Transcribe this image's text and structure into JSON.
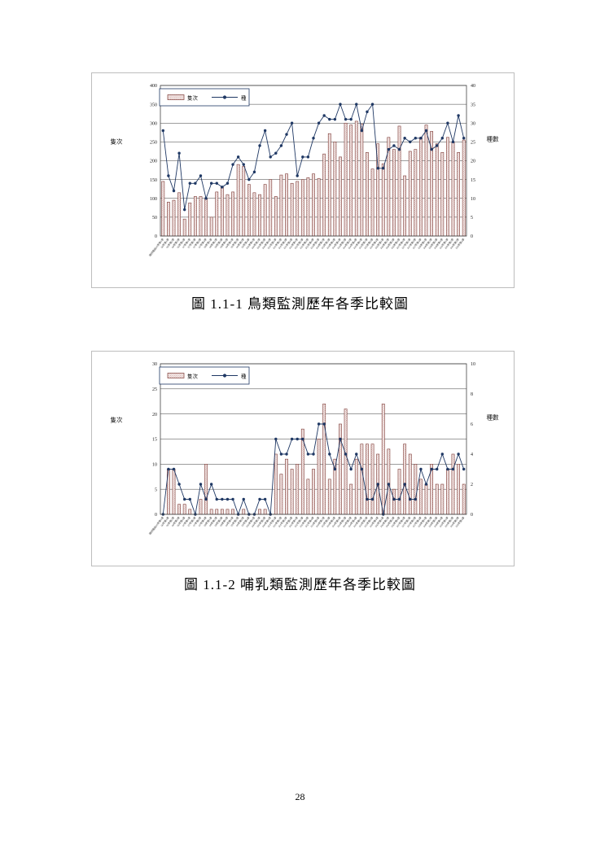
{
  "page": {
    "number": "28"
  },
  "figure1": {
    "caption": "圖 1.1-1 鳥類監測歷年各季比較圖"
  },
  "figure2": {
    "caption": "圖 1.1-2 哺乳類監測歷年各季比較圖"
  },
  "chart_data": [
    {
      "id": "birds",
      "type": "bar",
      "title": "圖 1.1-1 鳥類監測歷年各季比較圖",
      "legend": {
        "bar": "隻次",
        "line": "種"
      },
      "legend_position": "top-left",
      "grid": true,
      "axis_left": {
        "label": "隻次",
        "min": 0,
        "max": 400,
        "step": 50
      },
      "axis_right": {
        "label": "種數",
        "min": 0,
        "max": 40,
        "step": 5
      },
      "colors": {
        "bar_stroke": "#7e3b36",
        "bar_dot": "#c49a96",
        "line": "#1f3864"
      },
      "categories": [
        "環評階段95年第1季",
        "96年第1季",
        "96年第2季",
        "96年第3季",
        "96年第4季",
        "97年第1季",
        "97年第2季",
        "97年第3季",
        "97年第4季",
        "98年第1季",
        "98年第2季",
        "98年第3季",
        "98年第4季",
        "99年第1季",
        "99年第2季",
        "99年第3季",
        "99年第4季",
        "100年第1季",
        "100年第2季",
        "100年第3季",
        "100年第4季",
        "101年第1季",
        "101年第2季",
        "101年第3季",
        "101年第4季",
        "102年第1季",
        "102年第2季",
        "102年第3季",
        "102年第4季",
        "103年第1季",
        "103年第2季",
        "103年第3季",
        "103年第4季",
        "104年第1季",
        "104年第2季",
        "104年第3季",
        "104年第4季",
        "105年第1季",
        "105年第2季",
        "105年第3季",
        "105年第4季",
        "106年第1季",
        "106年第2季",
        "106年第3季",
        "106年第4季",
        "107年第1季",
        "107年第2季",
        "107年第3季",
        "107年第4季",
        "108年第1季",
        "108年第2季",
        "108年第3季",
        "108年第4季",
        "109年第1季",
        "109年第2季",
        "109年第3季",
        "109年第4季"
      ],
      "series": [
        {
          "name": "隻次",
          "type": "bar",
          "axis": "left",
          "values": [
            145,
            90,
            95,
            115,
            45,
            88,
            105,
            105,
            100,
            50,
            117,
            130,
            110,
            117,
            190,
            185,
            137,
            115,
            110,
            137,
            150,
            105,
            162,
            165,
            140,
            145,
            150,
            155,
            165,
            153,
            218,
            272,
            250,
            210,
            300,
            295,
            305,
            297,
            222,
            178,
            245,
            192,
            262,
            230,
            292,
            160,
            225,
            230,
            262,
            295,
            278,
            245,
            222,
            262,
            250,
            222,
            255
          ]
        },
        {
          "name": "種",
          "type": "line",
          "axis": "right",
          "values": [
            28,
            16,
            12,
            22,
            7,
            14,
            14,
            16,
            10,
            14,
            14,
            13,
            14,
            19,
            21,
            19,
            15,
            17,
            24,
            28,
            21,
            22,
            24,
            27,
            30,
            16,
            21,
            21,
            26,
            30,
            32,
            31,
            31,
            35,
            31,
            31,
            35,
            28,
            33,
            35,
            18,
            18,
            23,
            24,
            23,
            26,
            25,
            26,
            26,
            28,
            23,
            24,
            26,
            30,
            25,
            32,
            26
          ]
        }
      ]
    },
    {
      "id": "mammals",
      "type": "bar",
      "title": "圖 1.1-2 哺乳類監測歷年各季比較圖",
      "legend": {
        "bar": "隻次",
        "line": "種"
      },
      "legend_position": "top-left",
      "grid": true,
      "axis_left": {
        "label": "隻次",
        "min": 0,
        "max": 30,
        "step": 5
      },
      "axis_right": {
        "label": "種數",
        "min": 0,
        "max": 10,
        "step": 2
      },
      "colors": {
        "bar_stroke": "#7e3b36",
        "bar_dot": "#c49a96",
        "line": "#1f3864"
      },
      "categories": [
        "環評階段95年第1季",
        "96年第1季",
        "96年第2季",
        "96年第3季",
        "96年第4季",
        "97年第1季",
        "97年第2季",
        "97年第3季",
        "97年第4季",
        "98年第1季",
        "98年第2季",
        "98年第3季",
        "98年第4季",
        "99年第1季",
        "99年第2季",
        "99年第3季",
        "99年第4季",
        "100年第1季",
        "100年第2季",
        "100年第3季",
        "100年第4季",
        "101年第1季",
        "101年第2季",
        "101年第3季",
        "101年第4季",
        "102年第1季",
        "102年第2季",
        "102年第3季",
        "102年第4季",
        "103年第1季",
        "103年第2季",
        "103年第3季",
        "103年第4季",
        "104年第1季",
        "104年第2季",
        "104年第3季",
        "104年第4季",
        "105年第1季",
        "105年第2季",
        "105年第3季",
        "105年第4季",
        "106年第1季",
        "106年第2季",
        "106年第3季",
        "106年第4季",
        "107年第1季",
        "107年第2季",
        "107年第3季",
        "107年第4季",
        "108年第1季",
        "108年第2季",
        "108年第3季",
        "108年第4季",
        "109年第1季",
        "109年第2季",
        "109年第3季",
        "109年第4季"
      ],
      "series": [
        {
          "name": "隻次",
          "type": "bar",
          "axis": "left",
          "values": [
            0,
            9,
            9,
            2,
            2,
            1,
            0,
            3,
            10,
            1,
            1,
            1,
            1,
            1,
            0,
            1,
            0,
            0,
            1,
            1,
            0,
            12,
            8,
            11,
            9,
            10,
            17,
            7,
            9,
            15,
            22,
            7,
            11,
            18,
            21,
            6,
            11,
            14,
            14,
            14,
            12,
            22,
            13,
            5,
            9,
            14,
            12,
            10,
            7,
            6,
            10,
            6,
            6,
            9,
            12,
            10,
            6
          ]
        },
        {
          "name": "種",
          "type": "line",
          "axis": "right",
          "values": [
            0,
            3,
            3,
            2,
            1,
            1,
            0,
            2,
            1,
            2,
            1,
            1,
            1,
            1,
            0,
            1,
            0,
            0,
            1,
            1,
            0,
            5,
            4,
            4,
            5,
            5,
            5,
            4,
            4,
            6,
            6,
            4,
            3,
            5,
            4,
            3,
            4,
            3,
            1,
            1,
            2,
            0,
            2,
            1,
            1,
            2,
            1,
            1,
            3,
            2,
            3,
            3,
            4,
            3,
            3,
            4,
            3
          ]
        }
      ]
    }
  ]
}
